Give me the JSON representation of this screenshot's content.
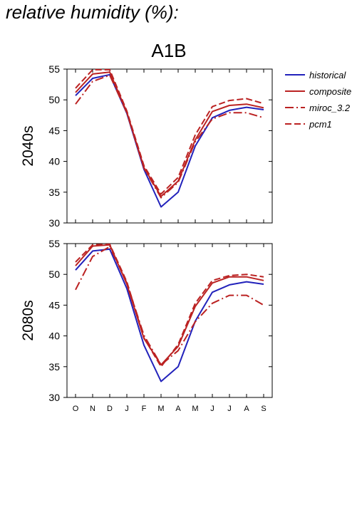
{
  "page_title": "relative humidity (%):",
  "chart_data": {
    "type": "line",
    "title": "A1B",
    "categories": [
      "O",
      "N",
      "D",
      "J",
      "F",
      "M",
      "A",
      "M",
      "J",
      "J",
      "A",
      "S"
    ],
    "ylim": [
      30,
      55
    ],
    "yticks": [
      30,
      35,
      40,
      45,
      50,
      55
    ],
    "grid": false,
    "legend": {
      "placement": "right",
      "entries": [
        {
          "name": "historical",
          "color": "#2222bb",
          "dash": "solid"
        },
        {
          "name": "composite",
          "color": "#bb2222",
          "dash": "solid"
        },
        {
          "name": "miroc_3.2",
          "color": "#bb2222",
          "dash": "dashdot"
        },
        {
          "name": "pcm1",
          "color": "#bb2222",
          "dash": "dash"
        }
      ]
    },
    "panels": [
      {
        "label": "2040s",
        "series": [
          {
            "name": "historical",
            "values": [
              50.7,
              53.5,
              54.1,
              47.8,
              38.7,
              32.6,
              35.0,
              42.5,
              47.1,
              48.3,
              48.8,
              48.4
            ]
          },
          {
            "name": "composite",
            "values": [
              51.2,
              54.2,
              54.5,
              48.0,
              39.0,
              34.3,
              36.8,
              43.5,
              48.1,
              49.1,
              49.3,
              48.7
            ]
          },
          {
            "name": "miroc_3.2",
            "values": [
              49.3,
              53.0,
              54.0,
              47.9,
              38.9,
              34.1,
              36.6,
              43.2,
              46.9,
              47.9,
              47.9,
              47.1
            ]
          },
          {
            "name": "pcm1",
            "values": [
              51.9,
              54.9,
              54.9,
              48.2,
              39.3,
              34.7,
              37.4,
              44.3,
              48.9,
              49.9,
              50.2,
              49.4
            ]
          }
        ]
      },
      {
        "label": "2080s",
        "series": [
          {
            "name": "historical",
            "values": [
              50.7,
              53.8,
              54.1,
              47.7,
              38.5,
              32.6,
              35.0,
              42.4,
              47.1,
              48.3,
              48.8,
              48.4
            ]
          },
          {
            "name": "composite",
            "values": [
              51.4,
              54.6,
              54.8,
              48.4,
              39.6,
              35.3,
              38.3,
              44.8,
              48.6,
              49.6,
              49.6,
              49.0
            ]
          },
          {
            "name": "miroc_3.2",
            "values": [
              47.5,
              52.9,
              54.5,
              48.6,
              40.1,
              35.3,
              37.6,
              42.3,
              45.3,
              46.6,
              46.6,
              45.0
            ]
          },
          {
            "name": "pcm1",
            "values": [
              52.0,
              54.8,
              54.9,
              48.8,
              39.7,
              35.0,
              38.6,
              45.3,
              49.0,
              49.8,
              50.0,
              49.6
            ]
          }
        ]
      }
    ]
  }
}
